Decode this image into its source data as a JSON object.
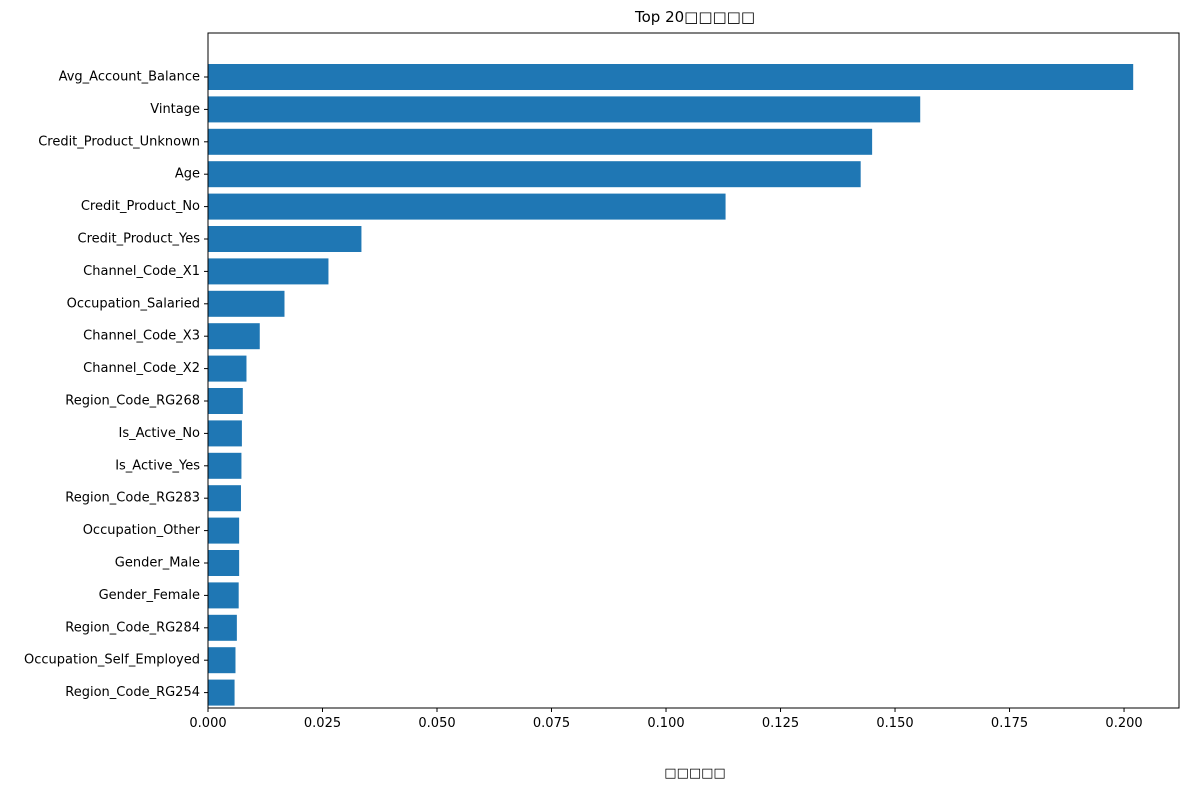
{
  "chart_data": {
    "type": "bar",
    "orientation": "horizontal",
    "title": "Top 20□□□□□",
    "xlabel": "□□□□□",
    "ylabel": "",
    "xlim": [
      0,
      0.212
    ],
    "xticks": [
      0.0,
      0.025,
      0.05,
      0.075,
      0.1,
      0.125,
      0.15,
      0.175,
      0.2
    ],
    "xtick_labels": [
      "0.000",
      "0.025",
      "0.050",
      "0.075",
      "0.100",
      "0.125",
      "0.150",
      "0.175",
      "0.200"
    ],
    "grid": false,
    "legend": "none",
    "bar_color": "#1f77b4",
    "categories": [
      "Avg_Account_Balance",
      "Vintage",
      "Credit_Product_Unknown",
      "Age",
      "Credit_Product_No",
      "Credit_Product_Yes",
      "Channel_Code_X1",
      "Occupation_Salaried",
      "Channel_Code_X3",
      "Channel_Code_X2",
      "Region_Code_RG268",
      "Is_Active_No",
      "Is_Active_Yes",
      "Region_Code_RG283",
      "Occupation_Other",
      "Gender_Male",
      "Gender_Female",
      "Region_Code_RG284",
      "Occupation_Self_Employed",
      "Region_Code_RG254"
    ],
    "values": [
      0.202,
      0.1555,
      0.145,
      0.1425,
      0.113,
      0.0335,
      0.0263,
      0.0167,
      0.0113,
      0.0084,
      0.0076,
      0.0074,
      0.0073,
      0.0072,
      0.0068,
      0.0068,
      0.0067,
      0.0063,
      0.006,
      0.0058
    ]
  }
}
